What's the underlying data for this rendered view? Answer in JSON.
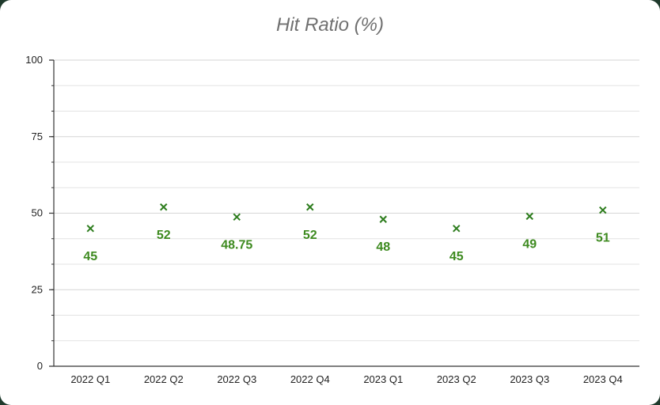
{
  "chart_data": {
    "type": "scatter",
    "title": "Hit Ratio (%)",
    "xlabel": "",
    "ylabel": "",
    "categories": [
      "2022 Q1",
      "2022 Q2",
      "2022 Q3",
      "2022 Q4",
      "2023 Q1",
      "2023 Q2",
      "2023 Q3",
      "2023 Q4"
    ],
    "values": [
      45,
      52,
      48.75,
      52,
      48,
      45,
      49,
      51
    ],
    "value_labels": [
      "45",
      "52",
      "48.75",
      "52",
      "48",
      "45",
      "49",
      "51"
    ],
    "ylim": [
      0,
      100
    ],
    "y_ticks": [
      "0",
      "25",
      "50",
      "75",
      "100"
    ],
    "y_tick_values": [
      0,
      25,
      50,
      75,
      100
    ],
    "grid": true,
    "marker": "x",
    "colors": {
      "marker": "#2e7d1e",
      "label": "#3d8a1f",
      "grid": "#e3e3e3",
      "axis": "#333333"
    }
  }
}
